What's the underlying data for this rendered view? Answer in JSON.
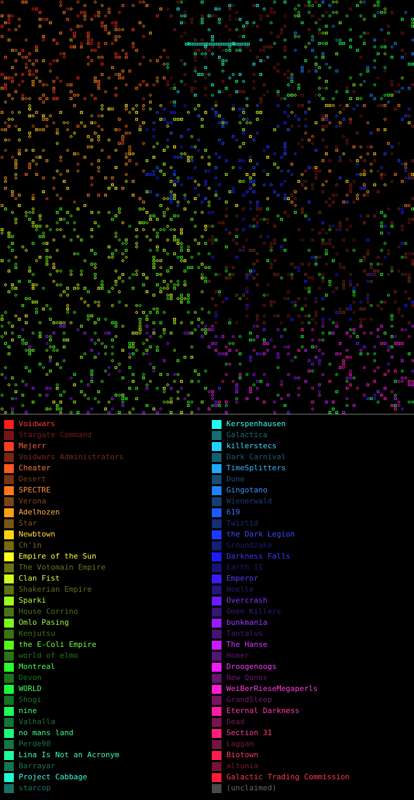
{
  "map": {
    "background": "#000000",
    "grid_cols": 120,
    "grid_rows": 120
  },
  "legend": {
    "left": [
      {
        "name": "Voidwars",
        "color": "#ff1c1c",
        "text_color": "#ff3a3a"
      },
      {
        "name": "Stargate Command",
        "color": "#7a1414",
        "text_color": "#7a1a1a"
      },
      {
        "name": "Mejerr",
        "color": "#ff3c1c",
        "text_color": "#ff5a3a"
      },
      {
        "name": "Voidwars Administrators",
        "color": "#7a2414",
        "text_color": "#7a2a1a"
      },
      {
        "name": "Cheater",
        "color": "#ff5a1c",
        "text_color": "#ff7a3a"
      },
      {
        "name": "Desert",
        "color": "#7a3414",
        "text_color": "#7a3a1a"
      },
      {
        "name": "SPECTRE",
        "color": "#ff7a1c",
        "text_color": "#ff903a"
      },
      {
        "name": "Verona",
        "color": "#7a4414",
        "text_color": "#7a4a1a"
      },
      {
        "name": "Adelhozen",
        "color": "#ffa014",
        "text_color": "#ffb03a"
      },
      {
        "name": "Star",
        "color": "#7a5414",
        "text_color": "#7a5a1a"
      },
      {
        "name": "Newbtown",
        "color": "#ffd414",
        "text_color": "#ffdc3a"
      },
      {
        "name": "Ch'in",
        "color": "#7a6a14",
        "text_color": "#7a6a1a"
      },
      {
        "name": "Empire of the Sun",
        "color": "#ffff1c",
        "text_color": "#ffff3a"
      },
      {
        "name": "The Votomain Empire",
        "color": "#6a7414",
        "text_color": "#6a741a"
      },
      {
        "name": "Clan Fist",
        "color": "#d4ff1c",
        "text_color": "#dcff3a"
      },
      {
        "name": "Shakerian Empire",
        "color": "#5a7414",
        "text_color": "#5a741a"
      },
      {
        "name": "Sparki",
        "color": "#a0ff1c",
        "text_color": "#b0ff3a"
      },
      {
        "name": "House Corrino",
        "color": "#4a7414",
        "text_color": "#4a741a"
      },
      {
        "name": "Omlo Pasing",
        "color": "#7aff1c",
        "text_color": "#90ff3a"
      },
      {
        "name": "Kenjutsu",
        "color": "#3a7414",
        "text_color": "#3a741a"
      },
      {
        "name": "the E-Coli Empire",
        "color": "#50ff1c",
        "text_color": "#6aff3a"
      },
      {
        "name": "world of elmo",
        "color": "#2a7414",
        "text_color": "#2a741a"
      },
      {
        "name": "Montreal",
        "color": "#2aff2a",
        "text_color": "#4aff4a"
      },
      {
        "name": "Devon",
        "color": "#1a741a",
        "text_color": "#1a741a"
      },
      {
        "name": "WORLD",
        "color": "#1cff3c",
        "text_color": "#3aff5a"
      },
      {
        "name": "Shogi",
        "color": "#147424",
        "text_color": "#1a742a"
      },
      {
        "name": "nine",
        "color": "#1cff5a",
        "text_color": "#3aff7a"
      },
      {
        "name": "Valhalla",
        "color": "#147434",
        "text_color": "#1a743a"
      },
      {
        "name": "no mans land",
        "color": "#1cff7a",
        "text_color": "#3aff90"
      },
      {
        "name": "Perde90",
        "color": "#147444",
        "text_color": "#1a744a"
      },
      {
        "name": "Lina Is Not an Acronym",
        "color": "#1cffa0",
        "text_color": "#3affb0"
      },
      {
        "name": "Barrayar",
        "color": "#147454",
        "text_color": "#1a745a"
      },
      {
        "name": "Project Cabbage",
        "color": "#1cffd4",
        "text_color": "#3affdc"
      },
      {
        "name": "starcop",
        "color": "#147464",
        "text_color": "#1a746a"
      }
    ],
    "right": [
      {
        "name": "Kerspenhausen",
        "color": "#1cfff0",
        "text_color": "#3afff4"
      },
      {
        "name": "Galactica",
        "color": "#146e74",
        "text_color": "#1a6e74"
      },
      {
        "name": "killerstecs",
        "color": "#1cd4ff",
        "text_color": "#3adcff"
      },
      {
        "name": "Dark Carnival",
        "color": "#145e74",
        "text_color": "#1a5e74"
      },
      {
        "name": "TimeSplitters",
        "color": "#1caaff",
        "text_color": "#3ab4ff"
      },
      {
        "name": "Dune",
        "color": "#144e74",
        "text_color": "#1a4e74"
      },
      {
        "name": "Gingotano",
        "color": "#1c84ff",
        "text_color": "#3a94ff"
      },
      {
        "name": "Wienerwald",
        "color": "#143e74",
        "text_color": "#1a3e74"
      },
      {
        "name": "619",
        "color": "#1c5aff",
        "text_color": "#3a70ff"
      },
      {
        "name": "Twiztid",
        "color": "#142e74",
        "text_color": "#1a2e74"
      },
      {
        "name": "the Dark Legion",
        "color": "#1c3aff",
        "text_color": "#3a50ff"
      },
      {
        "name": "Groundzake",
        "color": "#141e74",
        "text_color": "#1a1e74"
      },
      {
        "name": "Darkness Falls",
        "color": "#1c1cff",
        "text_color": "#3a3aff"
      },
      {
        "name": "Earth II",
        "color": "#141474",
        "text_color": "#1a1a74"
      },
      {
        "name": "Emperor",
        "color": "#3c1cff",
        "text_color": "#5a3aff"
      },
      {
        "name": "Hoelle",
        "color": "#241474",
        "text_color": "#2a1a74"
      },
      {
        "name": "Overcrash",
        "color": "#6a1cff",
        "text_color": "#7a3aff"
      },
      {
        "name": "Omen Killers",
        "color": "#341474",
        "text_color": "#3a1a74"
      },
      {
        "name": "bunkmania",
        "color": "#961cff",
        "text_color": "#a03aff"
      },
      {
        "name": "Tantalus",
        "color": "#441474",
        "text_color": "#4a1a74"
      },
      {
        "name": "The Hanse",
        "color": "#c81cff",
        "text_color": "#d03aff"
      },
      {
        "name": "Homer",
        "color": "#541474",
        "text_color": "#5a1a74"
      },
      {
        "name": "Droogenoogs",
        "color": "#f01cff",
        "text_color": "#f43aff"
      },
      {
        "name": "New Qonos",
        "color": "#641470",
        "text_color": "#6a1a70"
      },
      {
        "name": "WeiBerRieseMegaperls",
        "color": "#ff1cd4",
        "text_color": "#ff3adc"
      },
      {
        "name": "GrandSleep",
        "color": "#741460",
        "text_color": "#741a64"
      },
      {
        "name": "Eternal Darkness",
        "color": "#ff1ca0",
        "text_color": "#ff3ab0"
      },
      {
        "name": "Dead",
        "color": "#741450",
        "text_color": "#741a54"
      },
      {
        "name": "Section 31",
        "color": "#ff1c7a",
        "text_color": "#ff3a90"
      },
      {
        "name": "Laggan",
        "color": "#741440",
        "text_color": "#741a44"
      },
      {
        "name": "Biotown",
        "color": "#ff1c50",
        "text_color": "#ff3a6a"
      },
      {
        "name": "altonia",
        "color": "#741430",
        "text_color": "#741a34"
      },
      {
        "name": "Galactic Trading Commission",
        "color": "#ff1c3a",
        "text_color": "#ff3a50"
      },
      {
        "name": "(unclaimed)",
        "color": "#4a4a4a",
        "text_color": "#6a6a6a"
      }
    ]
  }
}
